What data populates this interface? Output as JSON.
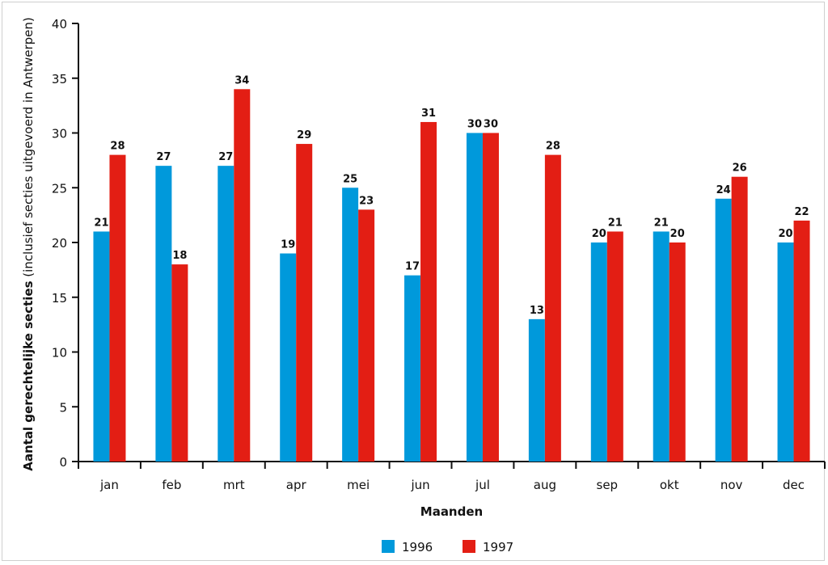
{
  "chart_data": {
    "type": "bar",
    "title": "",
    "categories": [
      "jan",
      "feb",
      "mrt",
      "apr",
      "mei",
      "jun",
      "jul",
      "aug",
      "sep",
      "okt",
      "nov",
      "dec"
    ],
    "series": [
      {
        "name": "1996",
        "color": "#0099db",
        "values": [
          21,
          27,
          27,
          19,
          25,
          17,
          30,
          13,
          20,
          21,
          24,
          20
        ]
      },
      {
        "name": "1997",
        "color": "#e31e14",
        "values": [
          28,
          18,
          34,
          29,
          23,
          31,
          30,
          28,
          21,
          20,
          26,
          22
        ]
      }
    ],
    "xlabel": "Maanden",
    "ylabel_bold": "Aantal gerechtelijke secties",
    "ylabel_rest": " (inclusief secties uitgevoerd in Antwerpen)",
    "ylim": [
      0,
      40
    ],
    "yticks": [
      0,
      5,
      10,
      15,
      20,
      25,
      30,
      35,
      40
    ],
    "grid": false,
    "legend_position": "bottom"
  }
}
